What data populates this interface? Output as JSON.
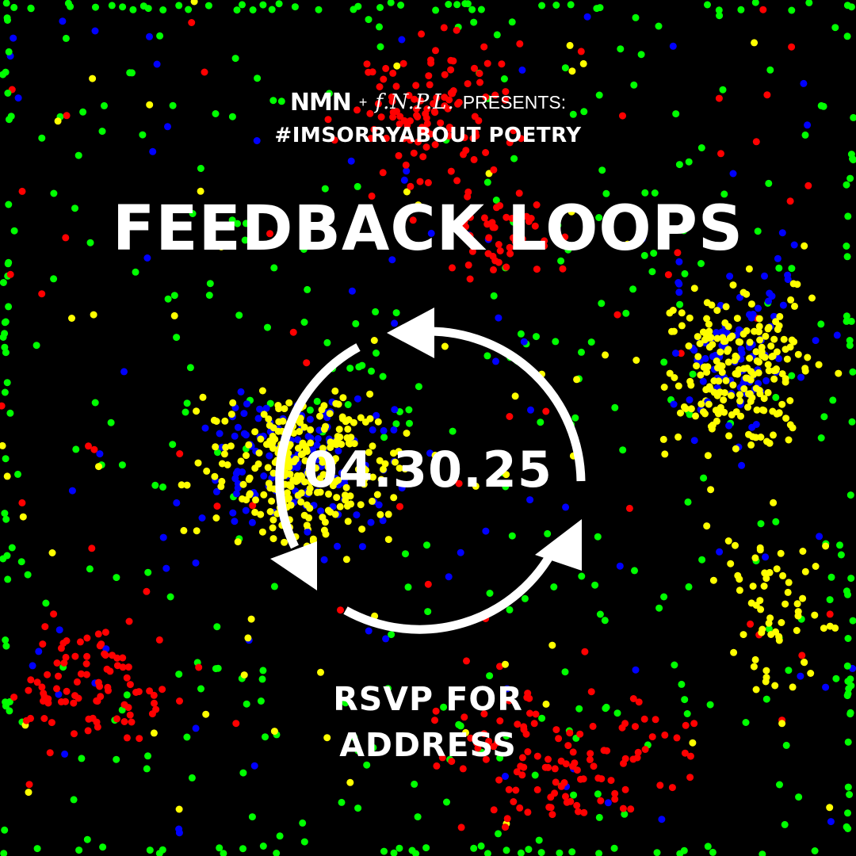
{
  "header": {
    "logo_nmn": "NMN",
    "plus": "+",
    "logo_fnpl": "f.N.P.L.",
    "presents": "PRESENTS:"
  },
  "hashtag": "#IMSORRYABOUT POETRY",
  "title": "FEEDBACK LOOPS",
  "date": "04.30.25",
  "rsvp": {
    "line1": "RSVP FOR",
    "line2": "ADDRESS"
  },
  "colors": {
    "background": "#000000",
    "text": "#ffffff",
    "dot_red": "#ff0000",
    "dot_green": "#00ff00",
    "dot_blue": "#0000ff",
    "dot_yellow": "#ffff00"
  },
  "icons": [
    "cycle-arrows-icon"
  ]
}
